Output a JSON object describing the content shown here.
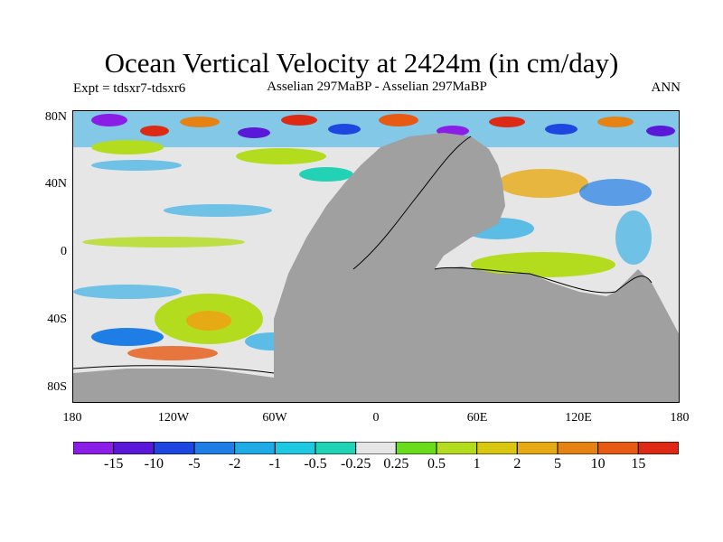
{
  "title": "Ocean Vertical Velocity at 2424m (in cm/day)",
  "subtitle_left": "Expt = tdsxr7-tdsxr6",
  "subtitle_center": "Asselian 297MaBP - Asselian 297MaBP",
  "subtitle_right": "ANN",
  "map": {
    "projection": "cylindrical equidistant",
    "lon_range": [
      -180,
      180
    ],
    "lat_range": [
      -90,
      90
    ],
    "land_color": "#a0a0a0",
    "neutral_color": "#e6e6e6",
    "y_ticks": [
      {
        "lat": 80,
        "label": "80N"
      },
      {
        "lat": 40,
        "label": "40N"
      },
      {
        "lat": 0,
        "label": "0"
      },
      {
        "lat": -40,
        "label": "40S"
      },
      {
        "lat": -80,
        "label": "80S"
      }
    ],
    "x_ticks": [
      {
        "lon": -180,
        "label": "180"
      },
      {
        "lon": -120,
        "label": "120W"
      },
      {
        "lon": -60,
        "label": "60W"
      },
      {
        "lon": 0,
        "label": "0"
      },
      {
        "lon": 60,
        "label": "60E"
      },
      {
        "lon": 120,
        "label": "120E"
      },
      {
        "lon": 180,
        "label": "180"
      }
    ]
  },
  "colorbar": {
    "colors": [
      "#8a1ee6",
      "#5a19d9",
      "#1e46e0",
      "#1e7ee6",
      "#20aae6",
      "#1ec8e0",
      "#22d2b4",
      "#e6e6e6",
      "#6adc1e",
      "#b4dc1e",
      "#d8c814",
      "#e6aa14",
      "#e68214",
      "#e65a14",
      "#dc2a14"
    ],
    "labels": [
      "-15",
      "-10",
      "-5",
      "-2",
      "-1",
      "-0.5",
      "-0.25",
      "0.25",
      "0.5",
      "1",
      "2",
      "5",
      "10",
      "15"
    ]
  }
}
